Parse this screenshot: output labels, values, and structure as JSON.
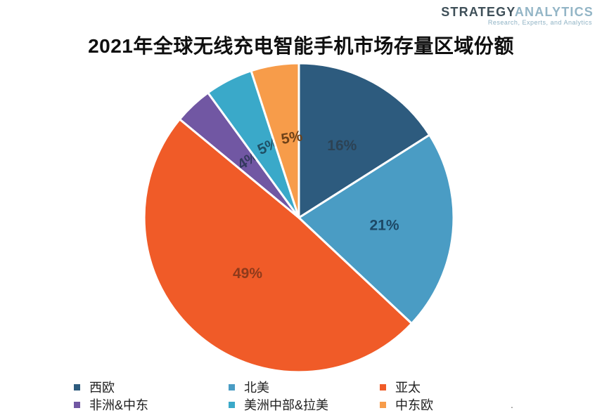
{
  "title": "2021年全球无线充电智能手机市场存量区域份额",
  "logo": {
    "part1": "STRATEGY",
    "part2": "ANALYTICS",
    "tagline": "Research, Experts, and Analytics"
  },
  "chart_data": {
    "type": "pie",
    "title": "2021年全球无线充电智能手机市场存量区域份额",
    "categories": [
      "西欧",
      "北美",
      "亚太",
      "非洲&中东",
      "美洲中部&拉美",
      "中东欧"
    ],
    "values": [
      16,
      21,
      49,
      4,
      5,
      5
    ],
    "labels": [
      "16%",
      "21%",
      "49%",
      "4%",
      "5%",
      "5%"
    ],
    "colors": [
      "#2d5b7e",
      "#4a9cc4",
      "#f05b28",
      "#7157a3",
      "#3aa9c9",
      "#f79c4a"
    ],
    "label_colors": [
      "#2c4254",
      "#1d4866",
      "#8e3a1b",
      "#34395e",
      "#1e5066",
      "#6e4118"
    ],
    "start_angle_deg": 0,
    "direction": "clockwise",
    "legend_position": "bottom",
    "units": "percent"
  },
  "footer_dot": "."
}
